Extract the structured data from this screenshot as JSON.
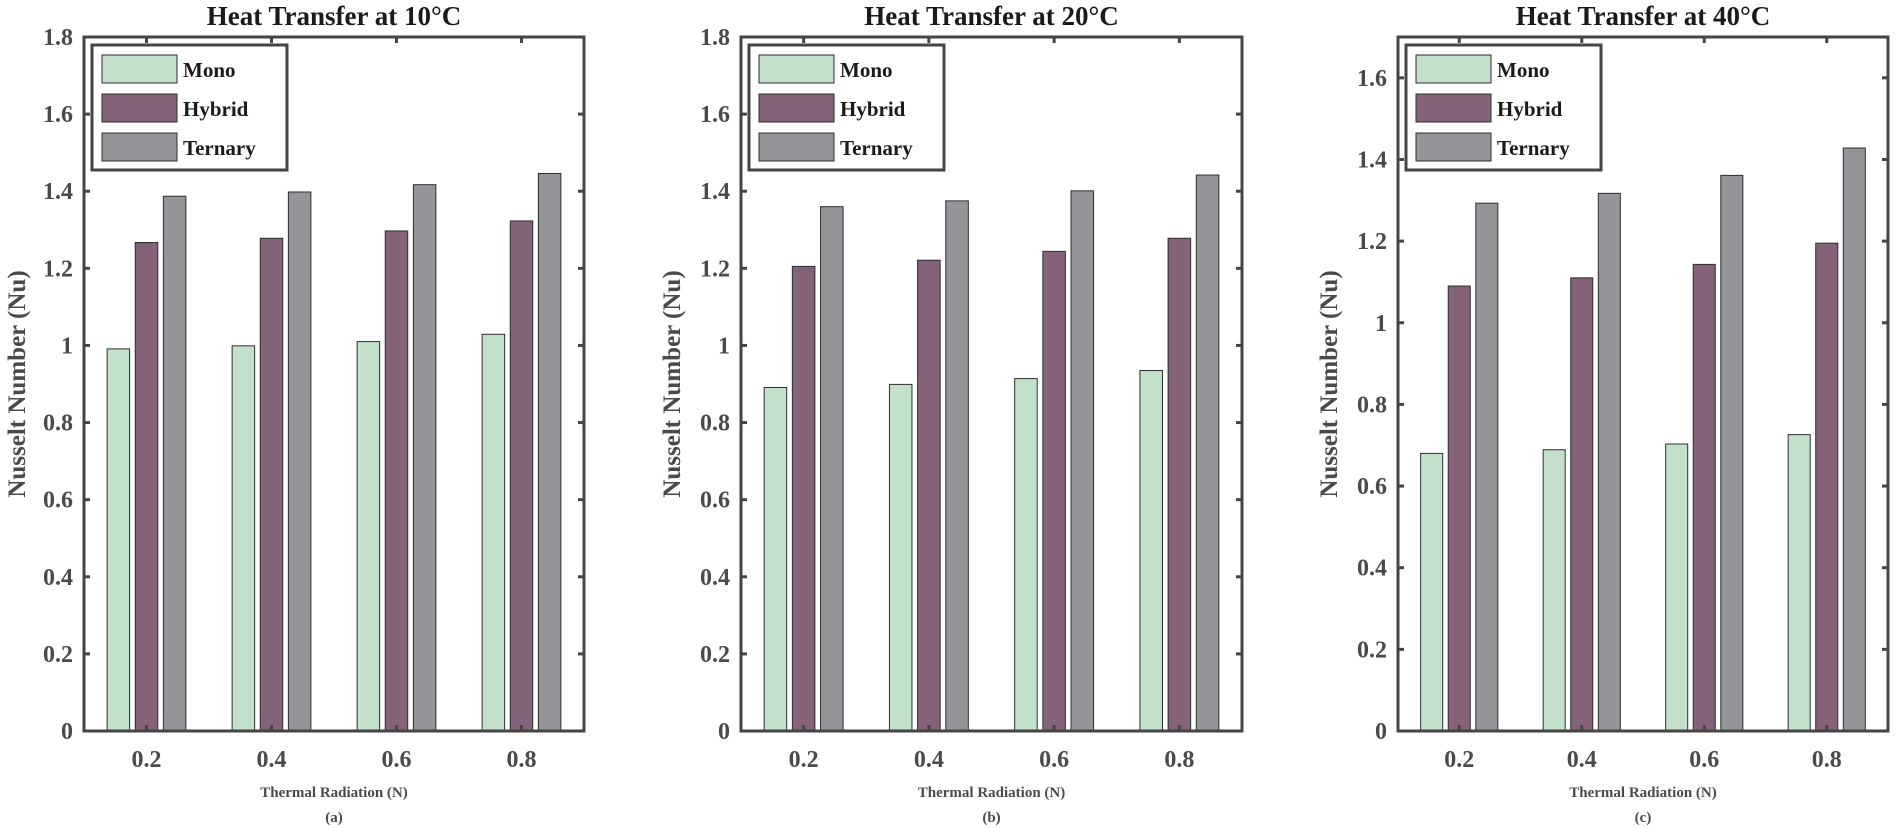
{
  "chart_data": [
    {
      "type": "bar",
      "title": "Heat Transfer at 10°C",
      "xlabel": "Thermal Radiation (N)",
      "ylabel": "Nusselt Number (Nu)",
      "caption": "(a)",
      "categories": [
        "0.2",
        "0.4",
        "0.6",
        "0.8"
      ],
      "ylim": [
        0,
        1.8
      ],
      "yticks": [
        "0",
        "0.2",
        "0.4",
        "0.6",
        "0.8",
        "1",
        "1.2",
        "1.4",
        "1.6",
        "1.8"
      ],
      "legend_position": "top-left",
      "grid": false,
      "series": [
        {
          "name": "Mono",
          "color": "#c3e0ca",
          "values": [
            0.991,
            0.999,
            1.01,
            1.029
          ]
        },
        {
          "name": "Hybrid",
          "color": "#84627a",
          "values": [
            1.267,
            1.278,
            1.297,
            1.323
          ]
        },
        {
          "name": "Ternary",
          "color": "#939598",
          "values": [
            1.387,
            1.398,
            1.417,
            1.446
          ]
        }
      ]
    },
    {
      "type": "bar",
      "title": "Heat Transfer at 20°C",
      "xlabel": "Thermal Radiation (N)",
      "ylabel": "Nusselt Number (Nu)",
      "caption": "(b)",
      "categories": [
        "0.2",
        "0.4",
        "0.6",
        "0.8"
      ],
      "ylim": [
        0,
        1.8
      ],
      "yticks": [
        "0",
        "0.2",
        "0.4",
        "0.6",
        "0.8",
        "1",
        "1.2",
        "1.4",
        "1.6",
        "1.8"
      ],
      "legend_position": "top-left",
      "grid": false,
      "series": [
        {
          "name": "Mono",
          "color": "#c3e0ca",
          "values": [
            0.891,
            0.899,
            0.914,
            0.935
          ]
        },
        {
          "name": "Hybrid",
          "color": "#84627a",
          "values": [
            1.205,
            1.221,
            1.244,
            1.278
          ]
        },
        {
          "name": "Ternary",
          "color": "#939598",
          "values": [
            1.36,
            1.375,
            1.401,
            1.442
          ]
        }
      ]
    },
    {
      "type": "bar",
      "title": "Heat Transfer at 40°C",
      "xlabel": "Thermal Radiation (N)",
      "ylabel": "Nusselt Number (Nu)",
      "caption": "(c)",
      "categories": [
        "0.2",
        "0.4",
        "0.6",
        "0.8"
      ],
      "ylim": [
        0,
        1.7
      ],
      "yticks": [
        "0",
        "0.2",
        "0.4",
        "0.6",
        "0.8",
        "1",
        "1.2",
        "1.4",
        "1.6"
      ],
      "legend_position": "top-left",
      "grid": false,
      "series": [
        {
          "name": "Mono",
          "color": "#c3e0ca",
          "values": [
            0.68,
            0.689,
            0.703,
            0.726
          ]
        },
        {
          "name": "Hybrid",
          "color": "#84627a",
          "values": [
            1.09,
            1.11,
            1.143,
            1.195
          ]
        },
        {
          "name": "Ternary",
          "color": "#939598",
          "values": [
            1.293,
            1.317,
            1.361,
            1.428
          ]
        }
      ]
    }
  ]
}
